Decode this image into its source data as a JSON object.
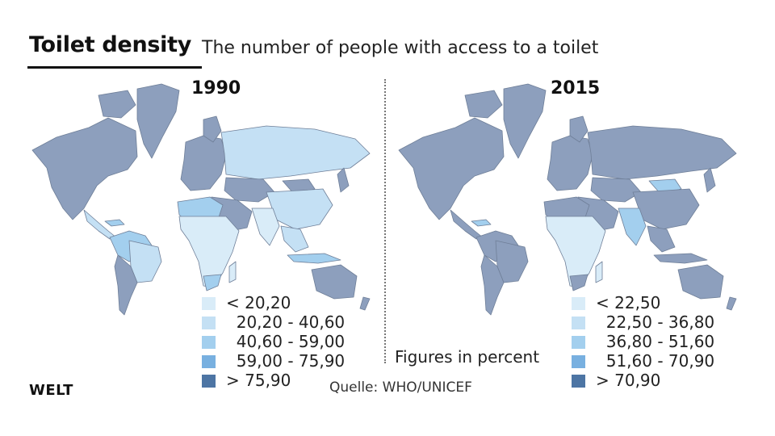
{
  "header": {
    "title": "Toilet density",
    "subtitle": "The number of people with access to a toilet"
  },
  "colors": {
    "class1": "#d9ecf8",
    "class2": "#c4e0f4",
    "class3": "#a3cfee",
    "class4": "#78b0e0",
    "class5": "#4d75a4",
    "high": "#8d9fbd",
    "border": "#6f7f98"
  },
  "maps": [
    {
      "year": "1990",
      "legend": [
        {
          "label": "< 20,20",
          "color": "#d9ecf8"
        },
        {
          "label": "  20,20 - 40,60",
          "color": "#c4e0f4"
        },
        {
          "label": "  40,60 - 59,00",
          "color": "#a3cfee"
        },
        {
          "label": "  59,00 - 75,90",
          "color": "#78b0e0"
        },
        {
          "label": "> 75,90",
          "color": "#4d75a4"
        }
      ]
    },
    {
      "year": "2015",
      "legend": [
        {
          "label": "< 22,50",
          "color": "#d9ecf8"
        },
        {
          "label": "  22,50 - 36,80",
          "color": "#c4e0f4"
        },
        {
          "label": "  36,80 - 51,60",
          "color": "#a3cfee"
        },
        {
          "label": "  51,60 - 70,90",
          "color": "#78b0e0"
        },
        {
          "label": "> 70,90",
          "color": "#4d75a4"
        }
      ]
    }
  ],
  "footer": {
    "figures_note": "Figures in percent",
    "source": "Quelle: WHO/UNICEF",
    "brand": "WELT"
  }
}
